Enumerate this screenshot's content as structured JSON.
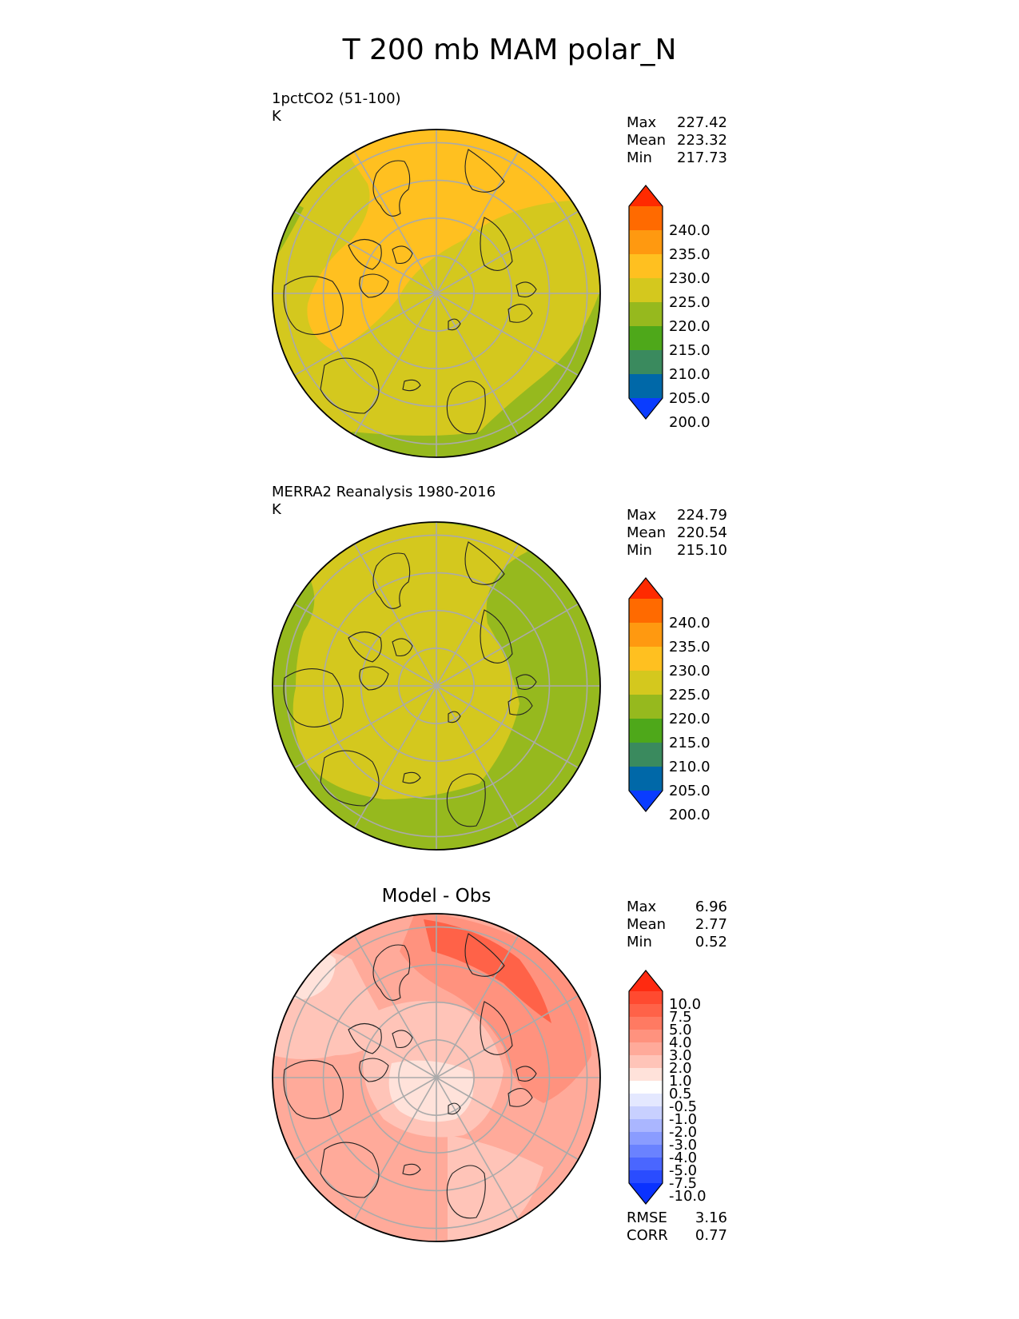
{
  "title": "T 200 mb MAM polar_N",
  "panels": [
    {
      "id": "test",
      "title": "1pctCO2 (51-100)",
      "units": "K",
      "stats": [
        {
          "label": "Max",
          "value": "227.42"
        },
        {
          "label": "Mean",
          "value": "223.32"
        },
        {
          "label": "Min",
          "value": "217.73"
        }
      ],
      "colorbar": {
        "labels": [
          "240.0",
          "235.0",
          "230.0",
          "225.0",
          "220.0",
          "215.0",
          "210.0",
          "205.0",
          "200.0"
        ],
        "colors": [
          "#ff2a00",
          "#ff6a00",
          "#ff9910",
          "#ffc020",
          "#d4c81e",
          "#96b91e",
          "#4ea81a",
          "#3a8a5e",
          "#0068a8",
          "#0a3cff"
        ]
      }
    },
    {
      "id": "reference",
      "title": "MERRA2 Reanalysis 1980-2016",
      "units": "K",
      "stats": [
        {
          "label": "Max",
          "value": "224.79"
        },
        {
          "label": "Mean",
          "value": "220.54"
        },
        {
          "label": "Min",
          "value": "215.10"
        }
      ],
      "colorbar": {
        "labels": [
          "240.0",
          "235.0",
          "230.0",
          "225.0",
          "220.0",
          "215.0",
          "210.0",
          "205.0",
          "200.0"
        ],
        "colors": [
          "#ff2a00",
          "#ff6a00",
          "#ff9910",
          "#ffc020",
          "#d4c81e",
          "#96b91e",
          "#4ea81a",
          "#3a8a5e",
          "#0068a8",
          "#0a3cff"
        ]
      }
    },
    {
      "id": "difference",
      "title": "Model - Obs",
      "stats": [
        {
          "label": "Max",
          "value": "6.96"
        },
        {
          "label": "Mean",
          "value": "2.77"
        },
        {
          "label": "Min",
          "value": "0.52"
        }
      ],
      "footer": [
        {
          "label": "RMSE",
          "value": "3.16"
        },
        {
          "label": "CORR",
          "value": "0.77"
        }
      ],
      "colorbar": {
        "labels": [
          "10.0",
          "7.5",
          "5.0",
          "4.0",
          "3.0",
          "2.0",
          "1.0",
          "0.5",
          "-0.5",
          "-1.0",
          "-2.0",
          "-3.0",
          "-4.0",
          "-5.0",
          "-7.5",
          "-10.0"
        ],
        "colors": [
          "#ff2a10",
          "#ff4a30",
          "#ff6248",
          "#ff7a62",
          "#ff927e",
          "#ffaa9a",
          "#ffc4b8",
          "#ffe2da",
          "#ffffff",
          "#e4e8ff",
          "#c8d0ff",
          "#aab6ff",
          "#8a9cff",
          "#6a82ff",
          "#4a66ff",
          "#2a4cff",
          "#0a32ff"
        ]
      }
    }
  ]
}
